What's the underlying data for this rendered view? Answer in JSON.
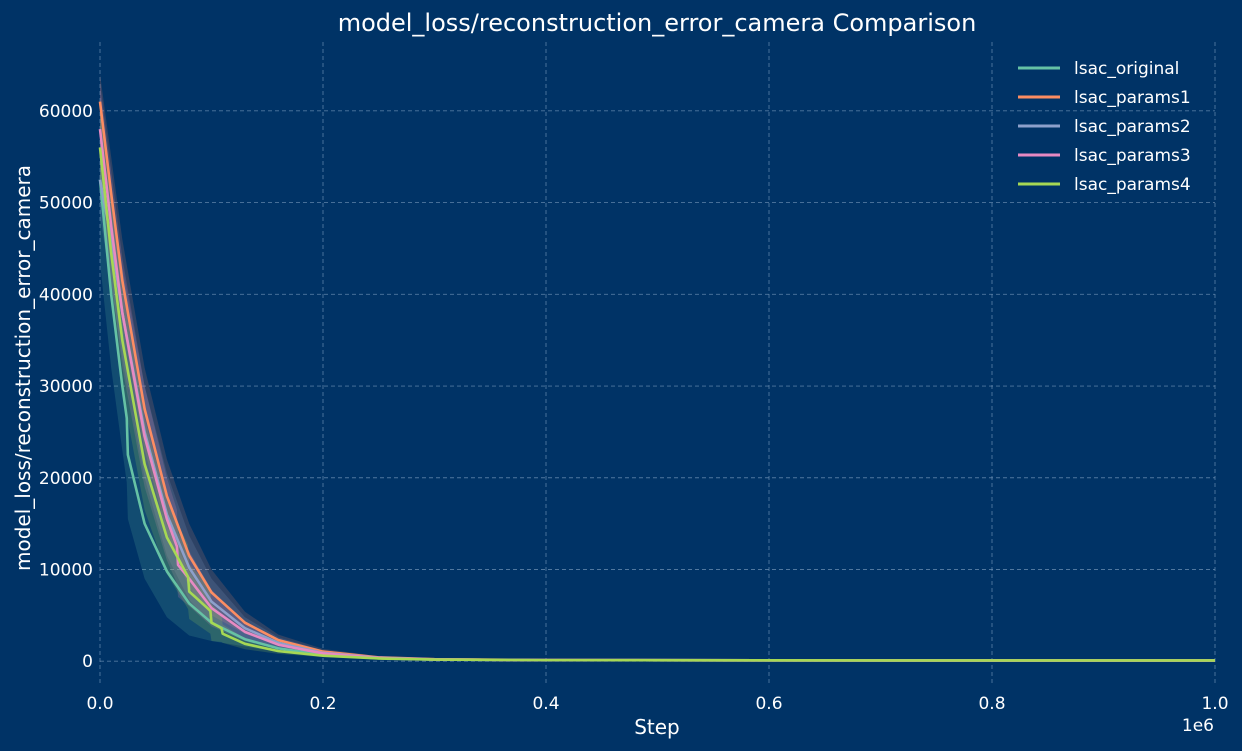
{
  "chart_data": {
    "type": "line",
    "title": "model_loss/reconstruction_error_camera Comparison",
    "xlabel": "Step",
    "ylabel": "model_loss/reconstruction_error_camera",
    "x_offset_label": "1e6",
    "xlim": [
      0,
      1000000
    ],
    "ylim": [
      -2700,
      67500
    ],
    "xticks": [
      0,
      200000,
      400000,
      600000,
      800000,
      1000000
    ],
    "xtick_labels": [
      "0.0",
      "0.2",
      "0.4",
      "0.6",
      "0.8",
      "1.0"
    ],
    "yticks": [
      0,
      10000,
      20000,
      30000,
      40000,
      50000,
      60000
    ],
    "ytick_labels": [
      "0",
      "10000",
      "20000",
      "30000",
      "40000",
      "50000",
      "60000"
    ],
    "grid": true,
    "legend_position": "top-right",
    "background": "#003366",
    "series": [
      {
        "name": "lsac_original",
        "color": "#66c2a5",
        "x": [
          0,
          10000,
          20000,
          24000,
          25000,
          40000,
          60000,
          80000,
          100000,
          130000,
          160000,
          200000,
          250000,
          300000,
          400000,
          600000,
          800000,
          1000000
        ],
        "y": [
          52500,
          40000,
          30000,
          26500,
          22500,
          15000,
          9800,
          6300,
          4200,
          2400,
          1400,
          700,
          320,
          180,
          120,
          100,
          90,
          85
        ],
        "band": [
          9000,
          8000,
          7000,
          7000,
          7000,
          6000,
          5000,
          3500,
          2000,
          800,
          400,
          200,
          100,
          50,
          20,
          10,
          10,
          10
        ]
      },
      {
        "name": "lsac_params1",
        "color": "#fc8d62",
        "x": [
          0,
          10000,
          20000,
          40000,
          60000,
          80000,
          100000,
          130000,
          160000,
          200000,
          250000,
          300000,
          400000,
          600000,
          800000,
          1000000
        ],
        "y": [
          61000,
          51000,
          41500,
          27500,
          18000,
          11500,
          7500,
          4200,
          2300,
          1050,
          420,
          220,
          130,
          100,
          90,
          85
        ],
        "band": [
          3000,
          4000,
          4500,
          4500,
          4000,
          3500,
          2500,
          1200,
          600,
          300,
          120,
          60,
          20,
          10,
          10,
          10
        ]
      },
      {
        "name": "lsac_params2",
        "color": "#8da0cb",
        "x": [
          0,
          10000,
          20000,
          40000,
          60000,
          80000,
          100000,
          130000,
          160000,
          200000,
          250000,
          300000,
          400000,
          600000,
          800000,
          1000000
        ],
        "y": [
          52500,
          46000,
          38000,
          25000,
          16000,
          10200,
          6500,
          3600,
          2000,
          900,
          380,
          200,
          120,
          95,
          88,
          85
        ],
        "band": [
          4000,
          5000,
          5000,
          5000,
          4500,
          3500,
          2500,
          1200,
          600,
          300,
          120,
          60,
          20,
          10,
          10,
          10
        ]
      },
      {
        "name": "lsac_params3",
        "color": "#e78ac3",
        "x": [
          0,
          10000,
          20000,
          40000,
          60000,
          69000,
          70000,
          80000,
          100000,
          130000,
          160000,
          200000,
          250000,
          300000,
          400000,
          600000,
          800000,
          1000000
        ],
        "y": [
          58000,
          47500,
          38000,
          24500,
          15500,
          12500,
          10500,
          9000,
          5800,
          3200,
          1800,
          850,
          350,
          190,
          120,
          95,
          88,
          85
        ],
        "band": [
          5000,
          6000,
          6000,
          5500,
          4500,
          4000,
          3500,
          3000,
          2000,
          1000,
          500,
          250,
          100,
          50,
          20,
          10,
          10,
          10
        ]
      },
      {
        "name": "lsac_params4",
        "color": "#a6d854",
        "x": [
          0,
          10000,
          20000,
          40000,
          60000,
          79000,
          80000,
          99000,
          100000,
          109000,
          110000,
          130000,
          160000,
          200000,
          250000,
          300000,
          400000,
          600000,
          800000,
          1000000
        ],
        "y": [
          56000,
          44500,
          35000,
          21500,
          13500,
          9200,
          7600,
          5500,
          4200,
          3600,
          3000,
          1900,
          1100,
          600,
          300,
          180,
          120,
          95,
          88,
          85
        ],
        "band": [
          5000,
          5500,
          5500,
          5000,
          4000,
          3500,
          3000,
          2500,
          2000,
          1500,
          1000,
          600,
          300,
          150,
          80,
          40,
          20,
          10,
          10,
          10
        ]
      }
    ]
  }
}
